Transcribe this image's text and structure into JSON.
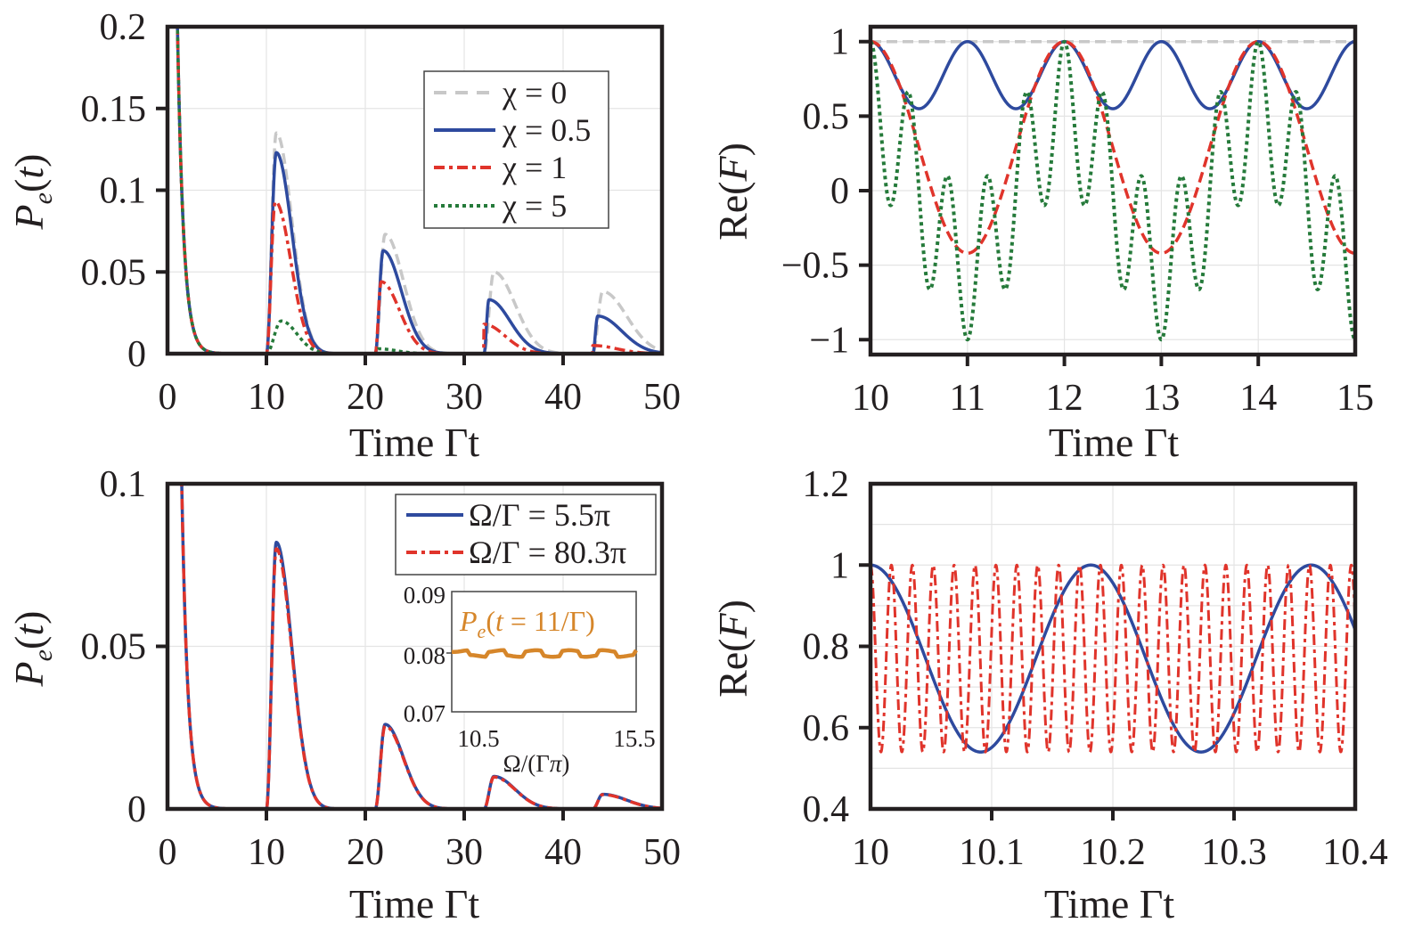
{
  "colors": {
    "gray": "#c8c8c8",
    "blue": "#2e4a9e",
    "red": "#e0342b",
    "green": "#257a3a",
    "orange": "#d6862a",
    "axis": "#231f20",
    "grid": "#e4e4e4"
  },
  "chart_data": [
    {
      "id": "top-left",
      "type": "line",
      "title": "",
      "xlabel": "Time Γt",
      "ylabel": "P_e(t)",
      "xlim": [
        0,
        50
      ],
      "ylim": [
        0,
        0.2
      ],
      "xticks": [
        0,
        10,
        20,
        30,
        40,
        50
      ],
      "xtick_labels": [
        "0",
        "10",
        "20",
        "30",
        "40",
        "50"
      ],
      "yticks": [
        0,
        0.05,
        0.1,
        0.15,
        0.2
      ],
      "ytick_labels": [
        "0",
        "0.05",
        "0.1",
        "0.15",
        "0.2"
      ],
      "grid": true,
      "legend_position": "top-right",
      "model": "revival_peaks",
      "series": [
        {
          "name": "χ = 0",
          "color_key": "gray",
          "style": "dashed",
          "peaks": [
            {
              "t": 11.0,
              "h": 0.135
            },
            {
              "t": 22.0,
              "h": 0.073
            },
            {
              "t": 33.0,
              "h": 0.05
            },
            {
              "t": 44.0,
              "h": 0.038
            }
          ]
        },
        {
          "name": "χ = 0.5",
          "color_key": "blue",
          "style": "solid",
          "peaks": [
            {
              "t": 11.0,
              "h": 0.123
            },
            {
              "t": 21.8,
              "h": 0.063
            },
            {
              "t": 32.5,
              "h": 0.033
            },
            {
              "t": 43.5,
              "h": 0.023
            }
          ]
        },
        {
          "name": "χ = 1",
          "color_key": "red",
          "style": "dashdot",
          "peaks": [
            {
              "t": 10.9,
              "h": 0.093
            },
            {
              "t": 21.6,
              "h": 0.044
            },
            {
              "t": 32.0,
              "h": 0.018
            },
            {
              "t": 43.0,
              "h": 0.005
            }
          ]
        },
        {
          "name": "χ = 5",
          "color_key": "green",
          "style": "dotted",
          "peaks": [
            {
              "t": 11.5,
              "h": 0.02
            },
            {
              "t": 21.3,
              "h": 0.003
            }
          ]
        }
      ],
      "initial_decay": {
        "start_value": 1.0,
        "rate": 1.0
      }
    },
    {
      "id": "top-right",
      "type": "line",
      "title": "",
      "xlabel": "Time Γt",
      "ylabel": "Re(F)",
      "xlim": [
        10,
        15
      ],
      "ylim": [
        -1.1,
        1.1
      ],
      "xticks": [
        10,
        11,
        12,
        13,
        14,
        15
      ],
      "xtick_labels": [
        "10",
        "11",
        "12",
        "13",
        "14",
        "15"
      ],
      "yticks": [
        -1,
        -0.5,
        0,
        0.5,
        1
      ],
      "ytick_labels": [
        "−1",
        "−0.5",
        "0",
        "0.5",
        "1"
      ],
      "grid": true,
      "model": "fidelity",
      "period": 2,
      "series": [
        {
          "name": "χ = 0",
          "color_key": "gray",
          "style": "dashed",
          "chi": 0,
          "min": 1.0
        },
        {
          "name": "χ = 0.5",
          "color_key": "blue",
          "style": "solid",
          "chi": 0.5,
          "min": 0.55
        },
        {
          "name": "χ = 1",
          "color_key": "red",
          "style": "dashed",
          "chi": 1,
          "min": -0.42
        },
        {
          "name": "χ = 5",
          "color_key": "green",
          "style": "dotted",
          "chi": 5,
          "min": -1.0,
          "local_max_at_trough": -0.85
        }
      ]
    },
    {
      "id": "bottom-left",
      "type": "line",
      "title": "",
      "xlabel": "Time Γt",
      "ylabel": "P_e(t)",
      "xlim": [
        0,
        50
      ],
      "ylim": [
        0,
        0.1
      ],
      "xticks": [
        0,
        10,
        20,
        30,
        40,
        50
      ],
      "xtick_labels": [
        "0",
        "10",
        "20",
        "30",
        "40",
        "50"
      ],
      "yticks": [
        0,
        0.05,
        0.1
      ],
      "ytick_labels": [
        "0",
        "0.05",
        "0.1"
      ],
      "grid": true,
      "legend_position": "top-right",
      "model": "revival_peaks",
      "series": [
        {
          "name": "Ω/Γ = 5.5π",
          "color_key": "blue",
          "style": "solid",
          "peaks": [
            {
              "t": 11.0,
              "h": 0.082
            },
            {
              "t": 22.0,
              "h": 0.026
            },
            {
              "t": 33.0,
              "h": 0.01
            },
            {
              "t": 44.0,
              "h": 0.0045
            }
          ]
        },
        {
          "name": "Ω/Γ = 80.3π",
          "color_key": "red",
          "style": "dashdot",
          "peaks": [
            {
              "t": 11.0,
              "h": 0.08
            },
            {
              "t": 22.0,
              "h": 0.0255
            },
            {
              "t": 33.0,
              "h": 0.0098
            },
            {
              "t": 44.0,
              "h": 0.0044
            }
          ]
        }
      ],
      "initial_decay": {
        "start_value": 1.0,
        "rate": 1.0
      },
      "inset": {
        "title": "P_e(t = 11/Γ)",
        "xlabel": "Ω/(Γπ)",
        "xlim": [
          10.5,
          15.5
        ],
        "ylim": [
          0.07,
          0.09
        ],
        "xtick_labels": [
          "10.5",
          "15.5"
        ],
        "ytick_labels": [
          "0.09",
          "0.08",
          "0.07"
        ],
        "yticks": [
          0.09,
          0.08,
          0.07
        ],
        "series": [
          {
            "name": "P_e(t = 11/Γ)",
            "color_key": "orange",
            "style": "solid",
            "mean": 0.0797,
            "amplitude": 0.0005,
            "cycles": 5
          }
        ]
      }
    },
    {
      "id": "bottom-right",
      "type": "line",
      "title": "",
      "xlabel": "Time Γt",
      "ylabel": "Re(F)",
      "xlim": [
        10,
        10.4
      ],
      "ylim": [
        0.4,
        1.2
      ],
      "xticks": [
        10,
        10.1,
        10.2,
        10.3,
        10.4
      ],
      "xtick_labels": [
        "10",
        "10.1",
        "10.2",
        "10.3",
        "10.4"
      ],
      "yticks": [
        0.4,
        0.6,
        0.8,
        1.0,
        1.2
      ],
      "ytick_labels": [
        "0.4",
        "0.6",
        "0.8",
        "1",
        "1.2"
      ],
      "grid": true,
      "model": "cosine",
      "series": [
        {
          "name": "Ω/Γ = 5.5π",
          "color_key": "blue",
          "style": "solid",
          "max": 1.0,
          "min": 0.54,
          "period": 0.1818
        },
        {
          "name": "Ω/Γ = 80.3π",
          "color_key": "red",
          "style": "dashdot",
          "max": 1.0,
          "min": 0.54,
          "period": 0.01725
        }
      ]
    }
  ],
  "text": {
    "tl_legend": [
      "χ = 0",
      "χ = 0.5",
      "χ = 1",
      "χ = 5"
    ],
    "bl_legend": [
      "Ω/Γ = 5.5π",
      "Ω/Γ = 80.3π"
    ]
  }
}
